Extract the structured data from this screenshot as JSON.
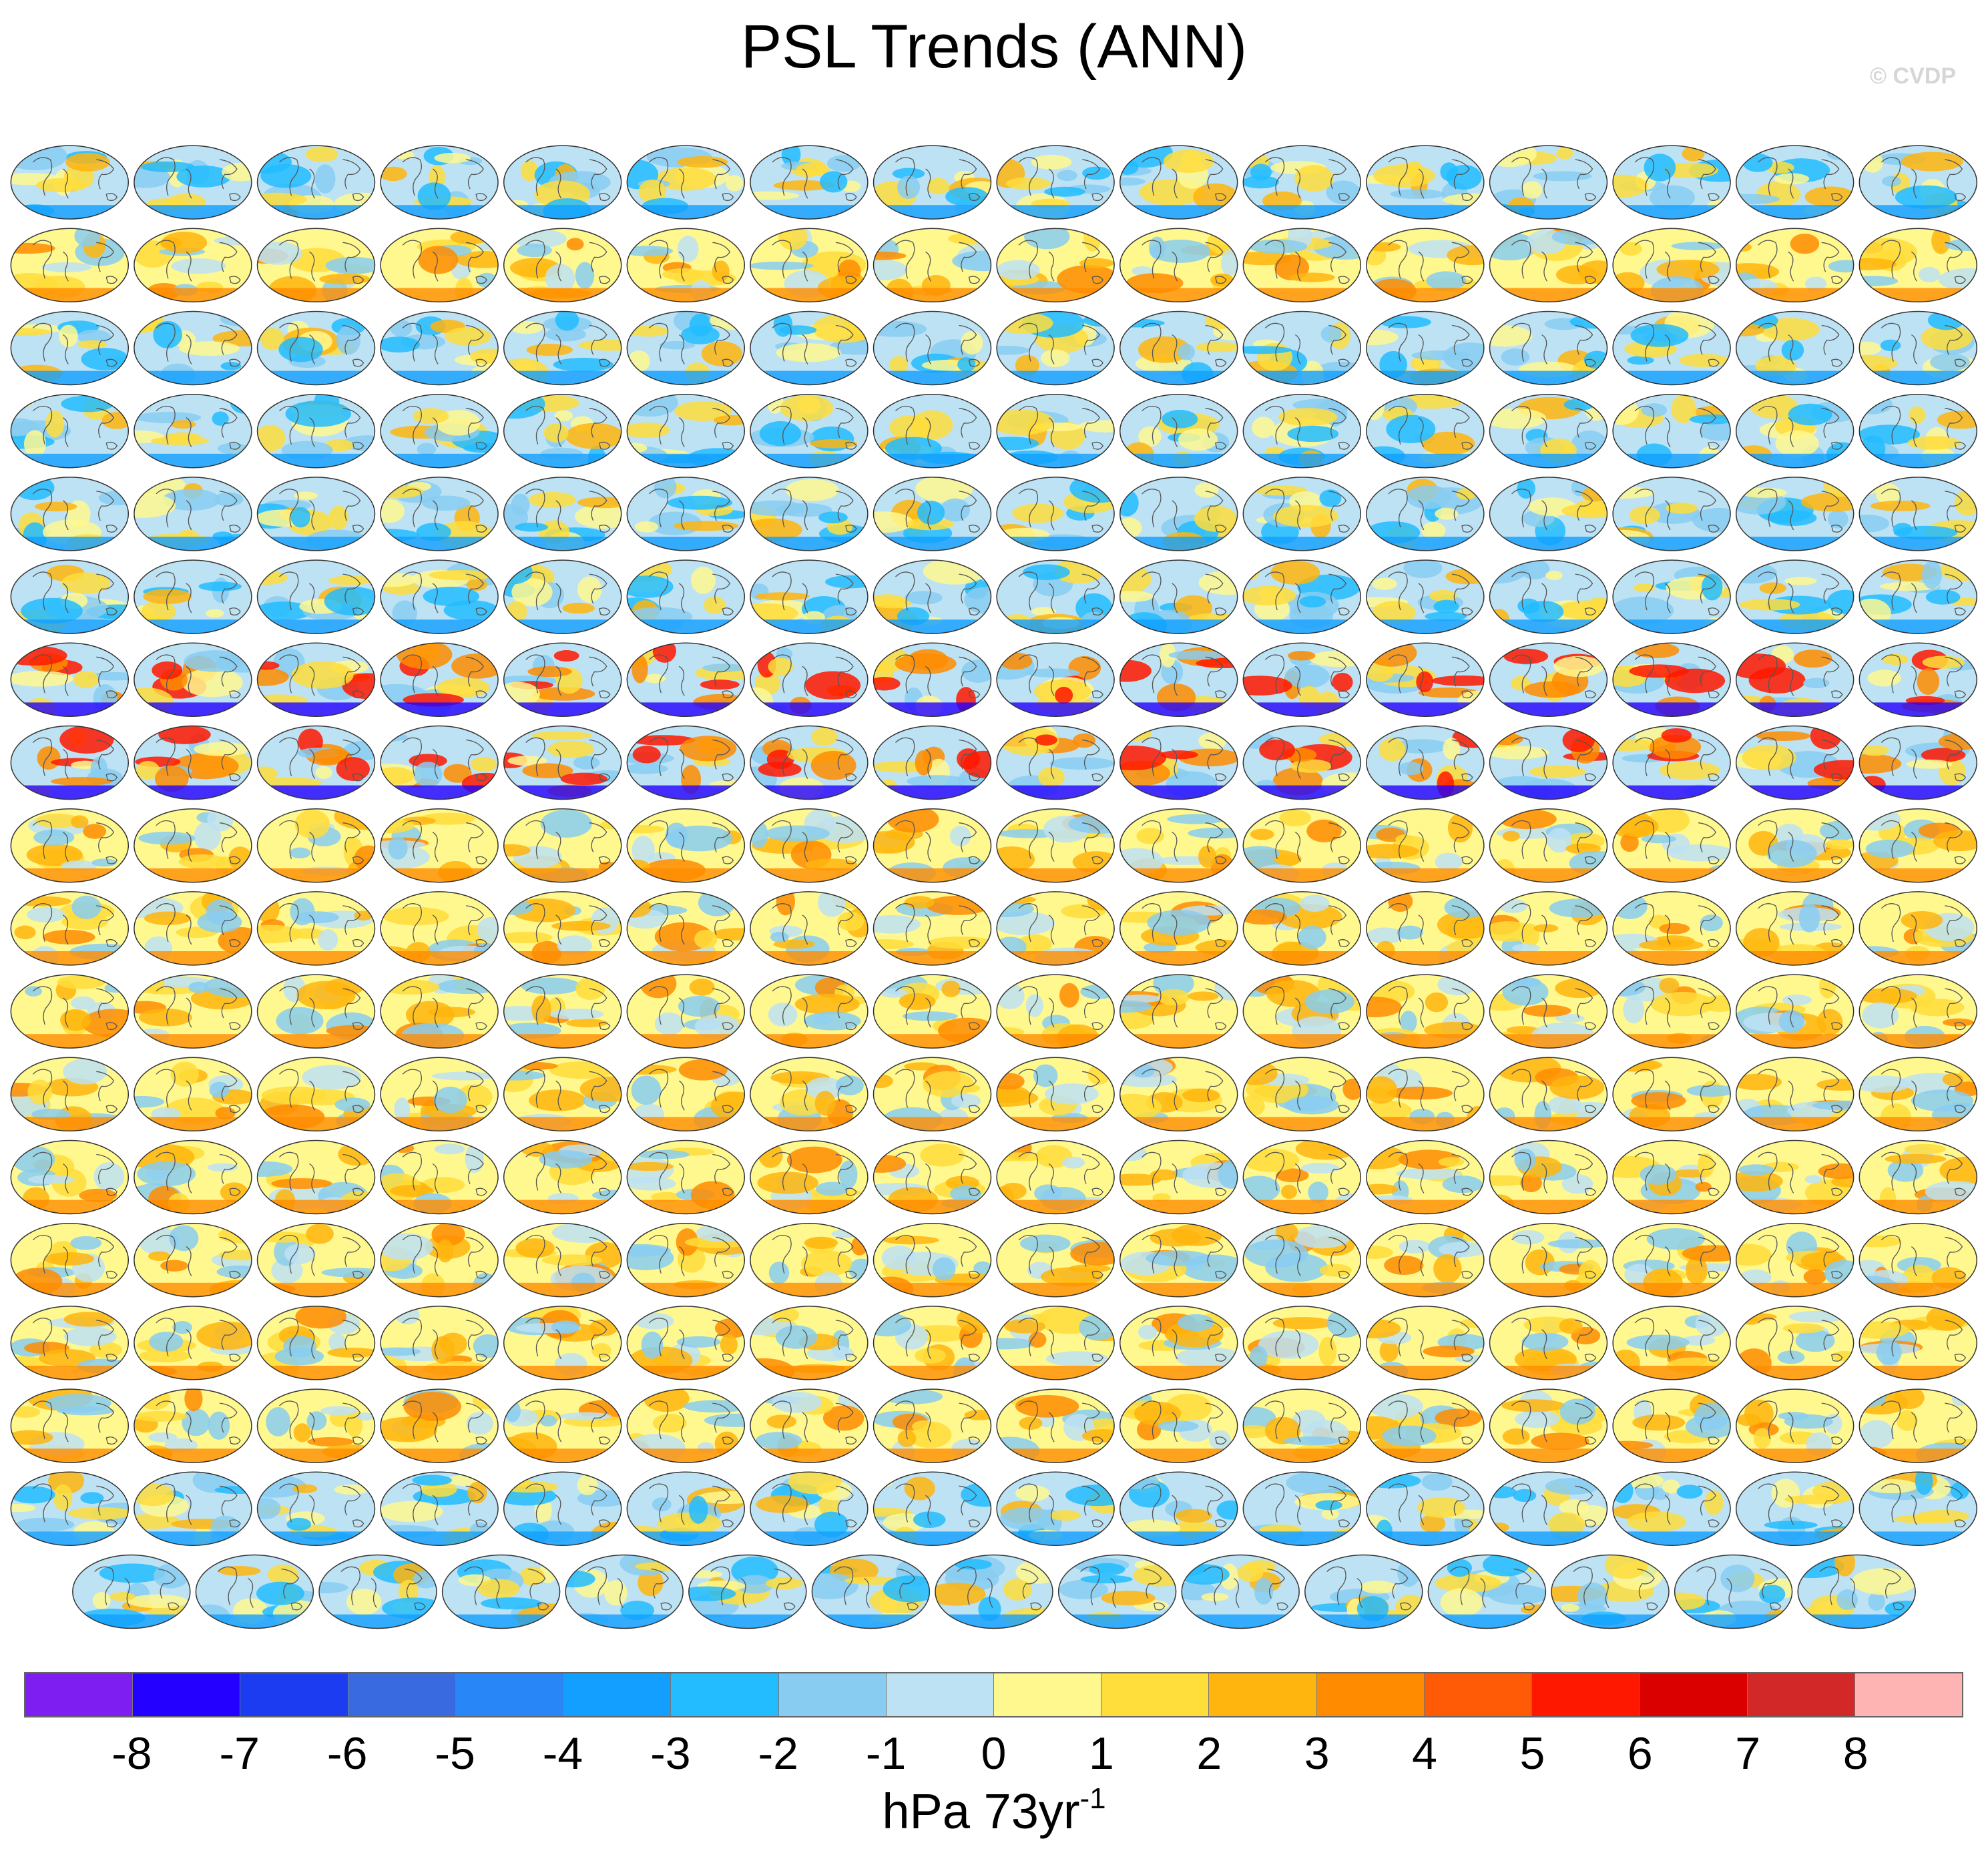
{
  "title": "PSL Trends (ANN)",
  "watermark": "© CVDP",
  "units": {
    "base": "hPa 73yr",
    "exponent": "-1"
  },
  "colorbar": {
    "colors": [
      "#7e1ef0",
      "#2300ff",
      "#1c3cf2",
      "#3a6ae0",
      "#2886f6",
      "#129fff",
      "#22bcff",
      "#88cdf1",
      "#bde2f4",
      "#fff88f",
      "#ffdd3b",
      "#ffb50d",
      "#ff8c00",
      "#ff5a05",
      "#ff1800",
      "#db0000",
      "#d22828",
      "#ffb4b4"
    ],
    "tick_labels": [
      "-8",
      "-7",
      "-6",
      "-5",
      "-4",
      "-3",
      "-2",
      "-1",
      "0",
      "1",
      "2",
      "3",
      "4",
      "5",
      "6",
      "7",
      "8"
    ]
  },
  "panel_grid": {
    "full_rows": 17,
    "columns": 16,
    "last_row_panels": 15,
    "row_styles": [
      "mixed",
      "yellow",
      "mixed",
      "mixed",
      "mixed",
      "mixed",
      "red",
      "red",
      "yellow",
      "yellow",
      "yellow",
      "yellow",
      "yellow",
      "yellow",
      "yellow",
      "yellow",
      "mixed",
      "mixed"
    ]
  }
}
